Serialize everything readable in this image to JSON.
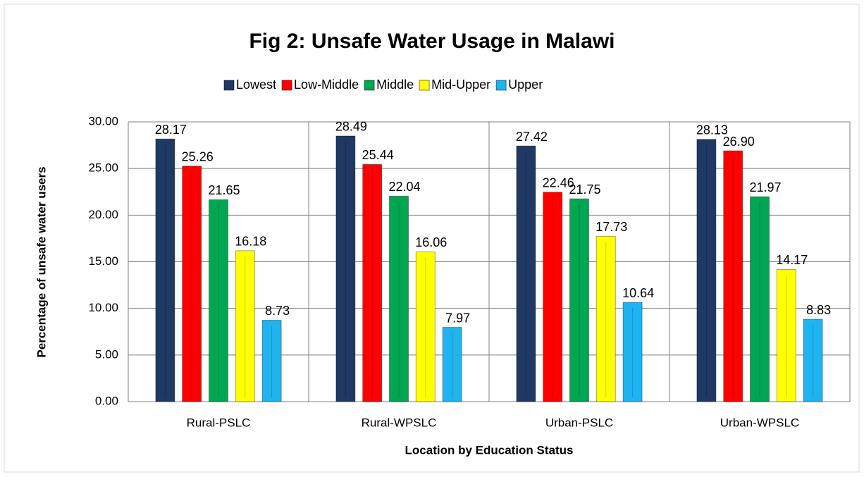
{
  "chart_data": {
    "type": "bar",
    "title": "Fig 2: Unsafe Water Usage in Malawi",
    "x_label": "Location by Education Status",
    "y_label": "Percentage of unsafe water users",
    "categories": [
      "Rural-PSLC",
      "Rural-WPSLC",
      "Urban-PSLC",
      "Urban-WPSLC"
    ],
    "series": [
      {
        "name": "Lowest",
        "color": "#1f3864",
        "values": [
          28.17,
          28.49,
          27.42,
          28.13
        ],
        "value_labels": [
          "28.17",
          "28.49",
          "27.42",
          "28.13"
        ]
      },
      {
        "name": "Low-Middle",
        "color": "#ff0000",
        "values": [
          25.26,
          25.44,
          22.46,
          26.9
        ],
        "value_labels": [
          "25.26",
          "25.44",
          "22.46",
          "26.90"
        ]
      },
      {
        "name": "Middle",
        "color": "#00a651",
        "values": [
          21.65,
          22.04,
          21.75,
          21.97
        ],
        "value_labels": [
          "21.65",
          "22.04",
          "21.75",
          "21.97"
        ]
      },
      {
        "name": "Mid-Upper",
        "color": "#ffff00",
        "values": [
          16.18,
          16.06,
          17.73,
          14.17
        ],
        "value_labels": [
          "16.18",
          "16.06",
          "17.73",
          "14.17"
        ]
      },
      {
        "name": "Upper",
        "color": "#1fb4f0",
        "values": [
          8.73,
          7.97,
          10.64,
          8.83
        ],
        "value_labels": [
          "8.73",
          "7.97",
          "10.64",
          "8.83"
        ]
      }
    ],
    "ylim": [
      0,
      30
    ],
    "yticks": [
      {
        "value": 0,
        "label": "0.00"
      },
      {
        "value": 5,
        "label": "5.00"
      },
      {
        "value": 10,
        "label": "10.00"
      },
      {
        "value": 15,
        "label": "15.00"
      },
      {
        "value": 20,
        "label": "20.00"
      },
      {
        "value": 25,
        "label": "25.00"
      },
      {
        "value": 30,
        "label": "30.00"
      }
    ],
    "grid": true,
    "legend": "top"
  }
}
